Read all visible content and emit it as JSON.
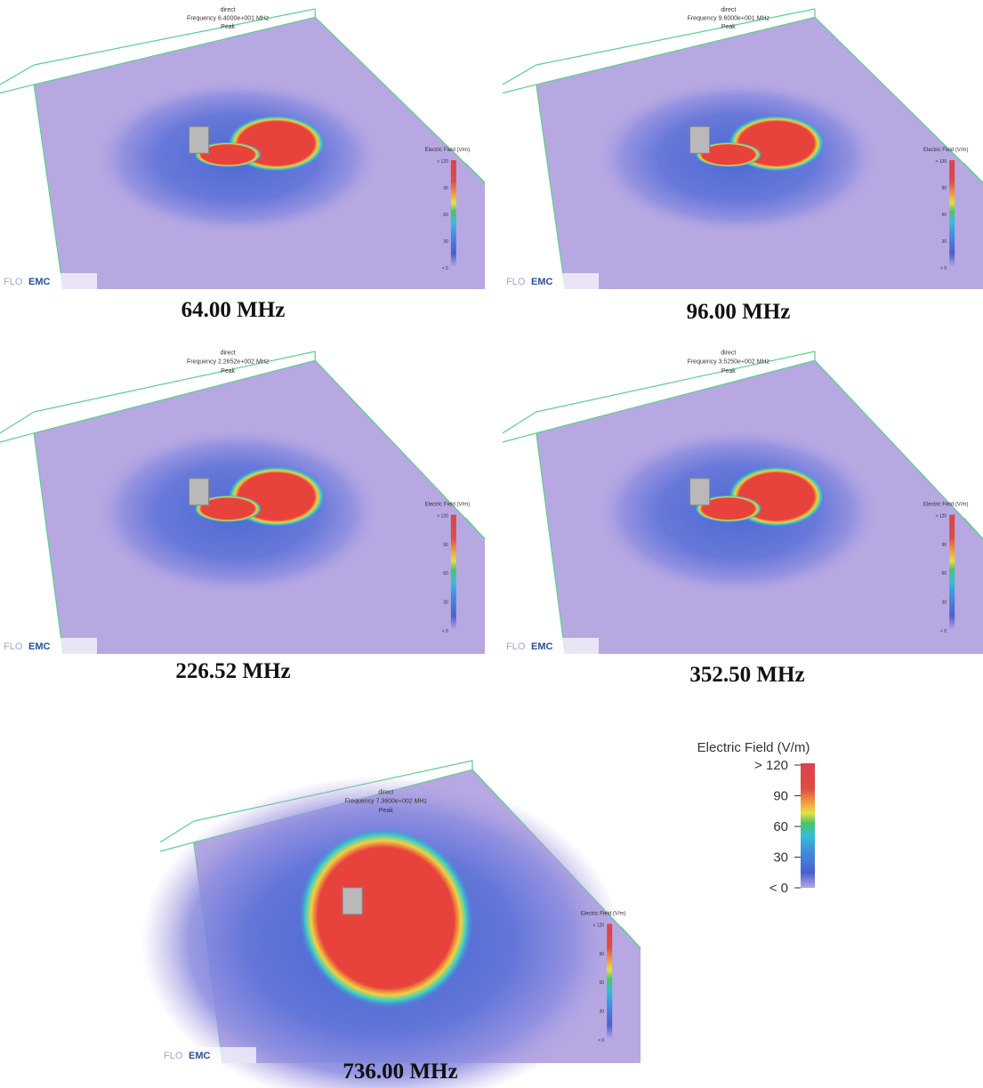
{
  "panels": [
    {
      "title": "direct",
      "frequency": "Frequency 6.4000e+001 MHz",
      "mode": "Peak",
      "logo_flo": "FLO",
      "logo_emc": "EMC",
      "colorbar_title": "Electric Field (V/m)",
      "caption": "64.00 MHz"
    },
    {
      "title": "direct",
      "frequency": "Frequency 9.6000e+001 MHz",
      "mode": "Peak",
      "logo_flo": "FLO",
      "logo_emc": "EMC",
      "colorbar_title": "Electric Field (V/m)",
      "caption": "96.00 MHz"
    },
    {
      "title": "direct",
      "frequency": "Frequency 2.2652e+002 MHz",
      "mode": "Peak",
      "logo_flo": "FLO",
      "logo_emc": "EMC",
      "colorbar_title": "Electric Field (V/m)",
      "caption": "226.52 MHz"
    },
    {
      "title": "direct",
      "frequency": "Frequency 3.5250e+002 MHz",
      "mode": "Peak",
      "logo_flo": "FLO",
      "logo_emc": "EMC",
      "colorbar_title": "Electric Field (V/m)",
      "caption": "352.50 MHz"
    },
    {
      "title": "direct",
      "frequency": "Frequency 7.3600e+002 MHz",
      "mode": "Peak",
      "logo_flo": "FLO",
      "logo_emc": "EMC",
      "colorbar_title": "Electric Field (V/m)",
      "caption": "736.00 MHz"
    }
  ],
  "colorbar": {
    "title": "Electric Field (V/m)",
    "ticks": [
      "> 120",
      "90",
      "60",
      "30",
      "< 0"
    ]
  }
}
